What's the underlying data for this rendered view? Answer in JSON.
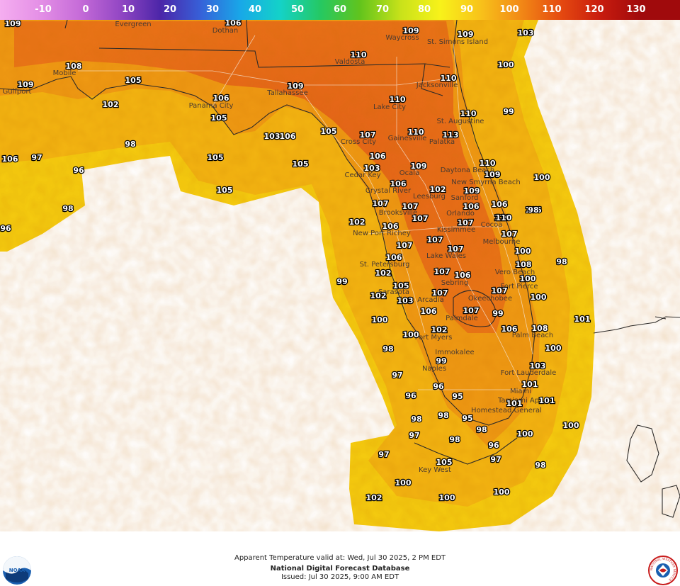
{
  "colorbar": {
    "ticks": [
      "-10",
      "0",
      "10",
      "20",
      "30",
      "40",
      "50",
      "60",
      "70",
      "80",
      "90",
      "100",
      "110",
      "120",
      "130"
    ],
    "colors": [
      "#f5aef0",
      "#e48fe6",
      "#c56bd8",
      "#9347c4",
      "#4b25a8",
      "#3760d8",
      "#18a8e8",
      "#14d2c8",
      "#25c862",
      "#62c41c",
      "#c8e21a",
      "#f8f21a",
      "#f8c21a",
      "#f28a16",
      "#e54a10",
      "#c81c0e",
      "#a00a0c"
    ]
  },
  "map": {
    "colors": {
      "water_far": "#f6ce10",
      "water_near": "#f4b612",
      "land_base": "#f09a14",
      "land_warm": "#ea7418",
      "land_hot": "#e4601a",
      "outline": "#2c2a28",
      "roads": "#f5e7d8"
    },
    "places": [
      {
        "name": "Evergreen"
      },
      {
        "name": "Dothan"
      },
      {
        "name": "Waycross"
      },
      {
        "name": "St. Simons Island"
      },
      {
        "name": "Valdosta"
      },
      {
        "name": "Mobile"
      },
      {
        "name": "Gulfport"
      },
      {
        "name": "Tallahassee"
      },
      {
        "name": "Jacksonville"
      },
      {
        "name": "Panama City"
      },
      {
        "name": "Lake City"
      },
      {
        "name": "St. Augustine"
      },
      {
        "name": "Gainesville"
      },
      {
        "name": "Palatka"
      },
      {
        "name": "Cross City"
      },
      {
        "name": "Cedar Key"
      },
      {
        "name": "Ocala"
      },
      {
        "name": "Daytona Beach"
      },
      {
        "name": "New Smyrna Beach"
      },
      {
        "name": "Crystal River"
      },
      {
        "name": "Leesburg"
      },
      {
        "name": "Sanford"
      },
      {
        "name": "Brooksville"
      },
      {
        "name": "Orlando"
      },
      {
        "name": "Kissimmee"
      },
      {
        "name": "Cocoa"
      },
      {
        "name": "New Port Richey"
      },
      {
        "name": "Melbourne"
      },
      {
        "name": "Lake Wales"
      },
      {
        "name": "St. Petersburg"
      },
      {
        "name": "Vero Beach"
      },
      {
        "name": "Sebring"
      },
      {
        "name": "Fort Pierce"
      },
      {
        "name": "Sarasota"
      },
      {
        "name": "Arcadia"
      },
      {
        "name": "Okeechobee"
      },
      {
        "name": "Palmdale"
      },
      {
        "name": "Fort Myers"
      },
      {
        "name": "Palm Beach"
      },
      {
        "name": "Immokalee"
      },
      {
        "name": "Naples"
      },
      {
        "name": "Fort Lauderdale"
      },
      {
        "name": "Miami"
      },
      {
        "name": "Tamiami Apt"
      },
      {
        "name": "Homestead General"
      },
      {
        "name": "Key West"
      }
    ],
    "temperatures": [
      "109",
      "106",
      "109",
      "109",
      "103",
      "110",
      "108",
      "105",
      "109",
      "100",
      "110",
      "106",
      "109",
      "102",
      "110",
      "99",
      "105",
      "110",
      "106",
      "110",
      "105",
      "103",
      "107",
      "113",
      "98",
      "105",
      "106",
      "97",
      "106",
      "103",
      "109",
      "110",
      "105",
      "96",
      "106",
      "109",
      "109",
      "100",
      "105",
      "107",
      "106",
      "106",
      "102",
      "107",
      "110",
      "98",
      "96",
      "102",
      "107",
      "106",
      "110",
      "98",
      "106",
      "107",
      "107",
      "107",
      "107",
      "100",
      "106",
      "107",
      "108",
      "98",
      "102",
      "107",
      "106",
      "99",
      "105",
      "100",
      "107",
      "102",
      "103",
      "107",
      "100",
      "106",
      "107",
      "99",
      "101",
      "100",
      "102",
      "108",
      "106",
      "100",
      "100",
      "98",
      "99",
      "103",
      "97",
      "101",
      "96",
      "95",
      "101",
      "101",
      "96",
      "98",
      "98",
      "95",
      "98",
      "100",
      "97",
      "100",
      "98",
      "96",
      "97",
      "105",
      "97",
      "98",
      "100",
      "100",
      "102",
      "100"
    ]
  },
  "footer": {
    "line1": "Apparent Temperature valid at: Wed, Jul 30 2025, 2 PM EDT",
    "line2": "National Digital Forecast Database",
    "line3": "Issued: Jul 30 2025, 9:00 AM EDT"
  },
  "logos": {
    "noaa": "NOAA",
    "nws_ring": "NATIONAL WEATHER SERVICE"
  }
}
